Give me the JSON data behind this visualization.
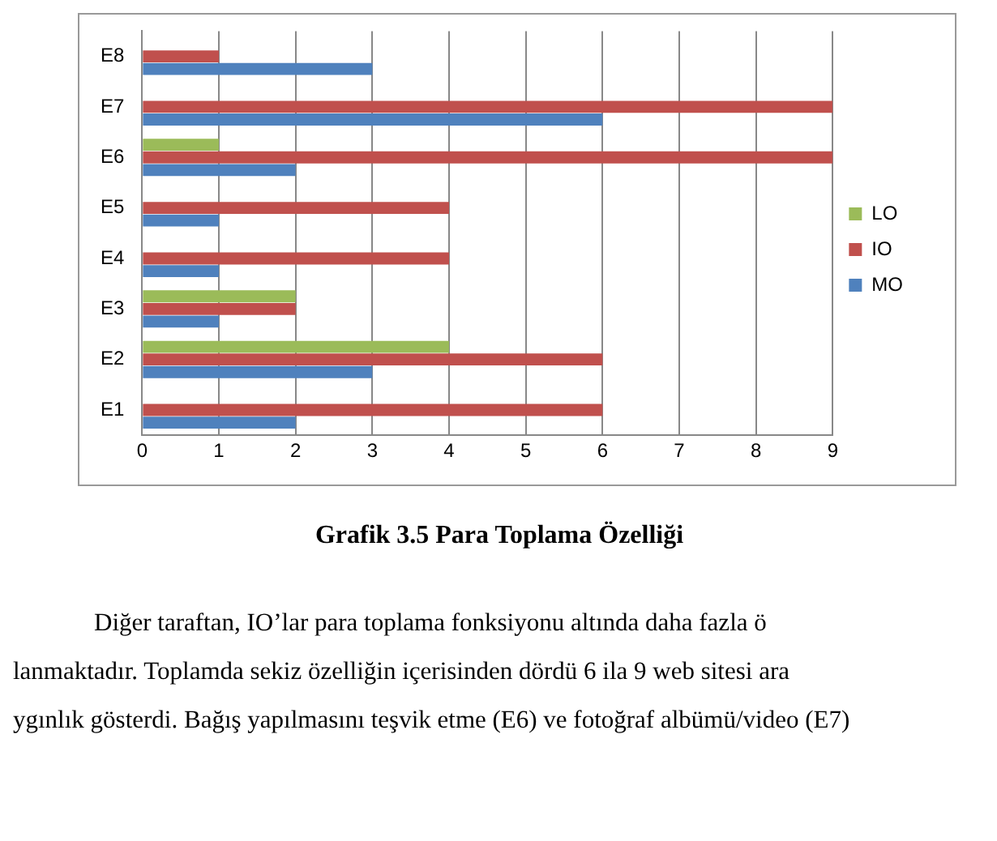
{
  "chart_data": {
    "type": "bar",
    "orientation": "horizontal",
    "title": "Grafik 3.5 Para Toplama Özelliği",
    "categories": [
      "E8",
      "E7",
      "E6",
      "E5",
      "E4",
      "E3",
      "E2",
      "E1"
    ],
    "series": [
      {
        "name": "LO",
        "color": "#9bbb59",
        "values": [
          0,
          0,
          1,
          0,
          0,
          2,
          4,
          0
        ]
      },
      {
        "name": "IO",
        "color": "#c0504d",
        "values": [
          1,
          9,
          9,
          4,
          4,
          2,
          6,
          6
        ]
      },
      {
        "name": "MO",
        "color": "#4f81bd",
        "values": [
          3,
          6,
          2,
          1,
          1,
          1,
          3,
          2
        ]
      }
    ],
    "xlim": [
      0,
      9
    ],
    "xticks": [
      0,
      1,
      2,
      3,
      4,
      5,
      6,
      7,
      8,
      9
    ],
    "grid": "x",
    "legend": "right",
    "annotations": [
      "Diğer taraftan, IO’lar para toplama fonksiyonu altında daha fazla ö",
      "lanmaktadır. Toplamda sekiz özelliğin içerisinden dördü 6 ila 9 web sitesi ara",
      "ygınlık gösterdi. Bağış yapılmasını teşvik etme (E6) ve fotoğraf albümü/video (E7)"
    ]
  }
}
